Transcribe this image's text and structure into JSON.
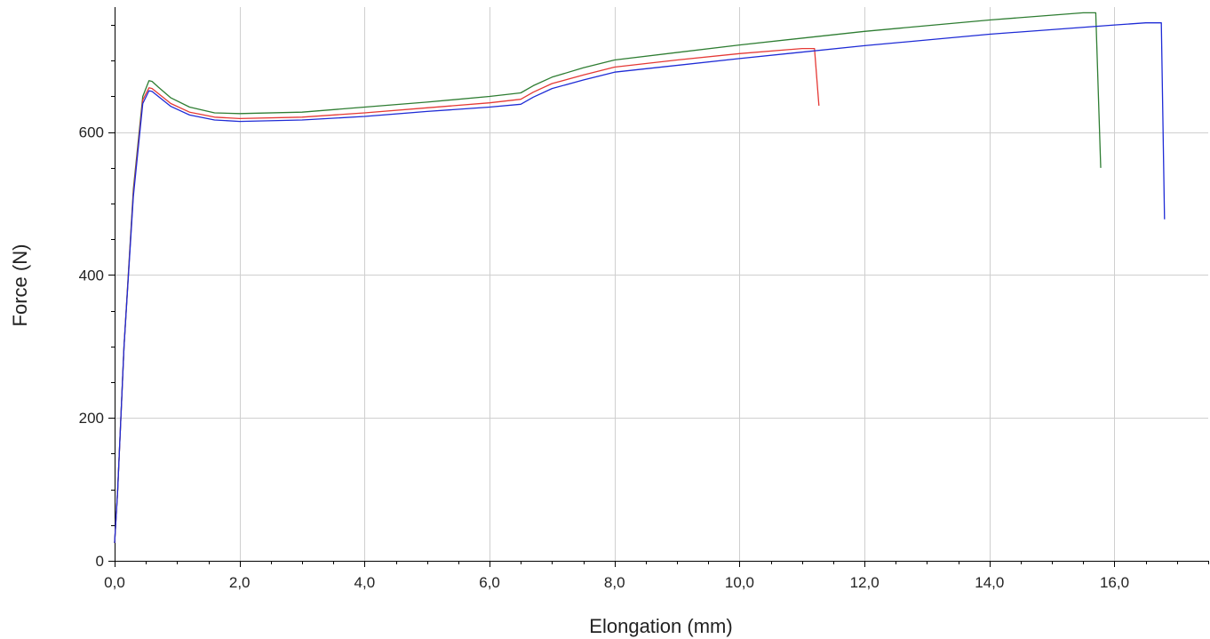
{
  "chart_data": {
    "type": "line",
    "title": "",
    "xlabel": "Elongation (mm)",
    "ylabel": "Force (N)",
    "xlim": [
      0,
      17.5
    ],
    "ylim": [
      0,
      775
    ],
    "x_ticks": [
      0,
      2,
      4,
      6,
      8,
      10,
      12,
      14,
      16
    ],
    "x_tick_labels": [
      "0,0",
      "2,0",
      "4,0",
      "6,0",
      "8,0",
      "10,0",
      "12,0",
      "14,0",
      "16,0"
    ],
    "y_ticks": [
      0,
      200,
      400,
      600
    ],
    "y_tick_labels": [
      "0",
      "200",
      "400",
      "600"
    ],
    "grid": true,
    "legend": "none",
    "series": [
      {
        "color": "#2e7d32",
        "x": [
          0,
          0.05,
          0.15,
          0.3,
          0.45,
          0.55,
          0.6,
          0.7,
          0.9,
          1.2,
          1.6,
          2.0,
          3.0,
          4.0,
          5.0,
          6.0,
          6.5,
          6.7,
          7.0,
          7.5,
          8.0,
          10.0,
          12.0,
          14.0,
          15.5,
          15.7,
          15.78
        ],
        "y": [
          25,
          100,
          300,
          520,
          650,
          672,
          671,
          663,
          648,
          635,
          627,
          626,
          628,
          635,
          642,
          650,
          655,
          665,
          677,
          690,
          701,
          722,
          741,
          757,
          767,
          767,
          550
        ]
      },
      {
        "color": "#e53935",
        "x": [
          0,
          0.05,
          0.15,
          0.3,
          0.45,
          0.55,
          0.6,
          0.7,
          0.9,
          1.2,
          1.6,
          2.0,
          3.0,
          4.0,
          5.0,
          6.0,
          6.5,
          6.7,
          7.0,
          7.5,
          8.0,
          9.0,
          10.0,
          11.0,
          11.2,
          11.27
        ],
        "y": [
          25,
          100,
          300,
          515,
          645,
          662,
          661,
          654,
          640,
          628,
          621,
          619,
          621,
          627,
          634,
          641,
          646,
          656,
          668,
          680,
          691,
          701,
          710,
          717,
          717,
          637
        ]
      },
      {
        "color": "#1e2bd6",
        "x": [
          0,
          0.05,
          0.15,
          0.3,
          0.45,
          0.55,
          0.6,
          0.7,
          0.9,
          1.2,
          1.6,
          2.0,
          3.0,
          4.0,
          5.0,
          6.0,
          6.5,
          6.7,
          7.0,
          7.5,
          8.0,
          10.0,
          12.0,
          14.0,
          16.0,
          16.5,
          16.75,
          16.8
        ],
        "y": [
          25,
          100,
          300,
          510,
          640,
          658,
          657,
          650,
          636,
          624,
          617,
          615,
          617,
          622,
          629,
          635,
          639,
          649,
          661,
          673,
          684,
          703,
          721,
          737,
          750,
          753,
          753,
          478
        ]
      }
    ]
  }
}
